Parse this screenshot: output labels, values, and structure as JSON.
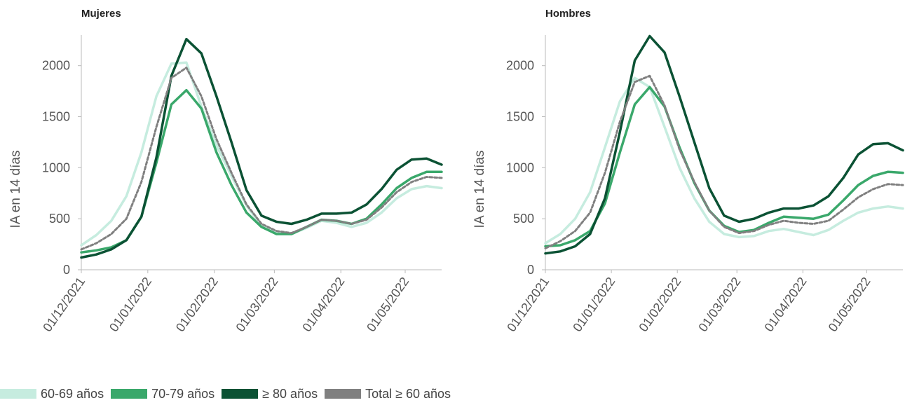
{
  "colors": {
    "s60": "#c6ecdf",
    "s70": "#3aa86b",
    "s80": "#0b5234",
    "total": "#808080"
  },
  "legend": [
    {
      "label": "60-69 años",
      "color": "#c6ecdf"
    },
    {
      "label": "70-79 años",
      "color": "#3aa86b"
    },
    {
      "label": "≥ 80 años",
      "color": "#0b5234"
    },
    {
      "label": "Total ≥ 60 años",
      "color": "#808080"
    }
  ],
  "chart_data": [
    {
      "type": "line",
      "title": "Mujeres",
      "ylabel": "IA en 14 días",
      "ylim": [
        0,
        2300
      ],
      "yticks": [
        0,
        500,
        1000,
        1500,
        2000
      ],
      "xticks": [
        "01/12/2021",
        "01/01/2022",
        "01/02/2022",
        "01/03/2022",
        "01/04/2022",
        "01/05/2022"
      ],
      "x": [
        "01/12/2021",
        "08/12/2021",
        "15/12/2021",
        "22/12/2021",
        "29/12/2021",
        "05/01/2022",
        "12/01/2022",
        "19/01/2022",
        "26/01/2022",
        "02/02/2022",
        "09/02/2022",
        "16/02/2022",
        "23/02/2022",
        "02/03/2022",
        "09/03/2022",
        "16/03/2022",
        "23/03/2022",
        "30/03/2022",
        "06/04/2022",
        "13/04/2022",
        "20/04/2022",
        "27/04/2022",
        "04/05/2022",
        "11/05/2022",
        "18/05/2022"
      ],
      "series": [
        {
          "name": "60-69 años",
          "color": "#c6ecdf",
          "dashed": false,
          "values": [
            240,
            340,
            480,
            720,
            1150,
            1700,
            2020,
            2030,
            1600,
            1220,
            920,
            630,
            430,
            360,
            350,
            410,
            480,
            460,
            420,
            460,
            560,
            700,
            790,
            820,
            800
          ]
        },
        {
          "name": "70-79 años",
          "color": "#3aa86b",
          "dashed": false,
          "values": [
            170,
            190,
            220,
            290,
            520,
            1050,
            1620,
            1760,
            1580,
            1150,
            830,
            560,
            420,
            350,
            350,
            420,
            490,
            480,
            450,
            500,
            640,
            800,
            900,
            960,
            960
          ]
        },
        {
          "name": "≥ 80 años",
          "color": "#0b5234",
          "dashed": false,
          "values": [
            120,
            150,
            200,
            290,
            520,
            1100,
            1900,
            2260,
            2120,
            1700,
            1250,
            780,
            530,
            470,
            450,
            490,
            550,
            550,
            560,
            640,
            790,
            980,
            1080,
            1090,
            1030
          ]
        },
        {
          "name": "Total ≥ 60 años",
          "color": "#808080",
          "dashed": true,
          "values": [
            200,
            260,
            350,
            500,
            860,
            1400,
            1880,
            1980,
            1700,
            1280,
            950,
            640,
            450,
            380,
            360,
            420,
            490,
            480,
            450,
            490,
            610,
            760,
            860,
            910,
            900
          ]
        }
      ]
    },
    {
      "type": "line",
      "title": "Hombres",
      "ylabel": "IA en 14 días",
      "ylim": [
        0,
        2300
      ],
      "yticks": [
        0,
        500,
        1000,
        1500,
        2000
      ],
      "xticks": [
        "01/12/2021",
        "01/01/2022",
        "01/02/2022",
        "01/03/2022",
        "01/04/2022",
        "01/05/2022"
      ],
      "x": [
        "01/12/2021",
        "08/12/2021",
        "15/12/2021",
        "22/12/2021",
        "29/12/2021",
        "05/01/2022",
        "12/01/2022",
        "19/01/2022",
        "26/01/2022",
        "02/02/2022",
        "09/02/2022",
        "16/02/2022",
        "23/02/2022",
        "02/03/2022",
        "09/03/2022",
        "16/03/2022",
        "23/03/2022",
        "30/03/2022",
        "06/04/2022",
        "13/04/2022",
        "20/04/2022",
        "27/04/2022",
        "04/05/2022",
        "11/05/2022",
        "18/05/2022"
      ],
      "series": [
        {
          "name": "60-69 años",
          "color": "#c6ecdf",
          "dashed": false,
          "values": [
            260,
            350,
            500,
            760,
            1200,
            1650,
            1880,
            1790,
            1400,
            1000,
            700,
            470,
            350,
            320,
            330,
            380,
            400,
            370,
            340,
            390,
            480,
            560,
            600,
            620,
            600
          ]
        },
        {
          "name": "70-79 años",
          "color": "#3aa86b",
          "dashed": false,
          "values": [
            230,
            240,
            290,
            380,
            650,
            1150,
            1620,
            1790,
            1600,
            1200,
            850,
            580,
            430,
            370,
            390,
            460,
            520,
            510,
            500,
            540,
            680,
            830,
            920,
            960,
            950
          ]
        },
        {
          "name": "≥ 80 años",
          "color": "#0b5234",
          "dashed": false,
          "values": [
            160,
            180,
            230,
            350,
            700,
            1350,
            2050,
            2290,
            2130,
            1700,
            1250,
            800,
            530,
            470,
            500,
            560,
            600,
            600,
            630,
            720,
            900,
            1130,
            1230,
            1240,
            1170
          ]
        },
        {
          "name": "Total ≥ 60 años",
          "color": "#808080",
          "dashed": true,
          "values": [
            210,
            280,
            380,
            560,
            950,
            1450,
            1840,
            1900,
            1610,
            1180,
            860,
            580,
            420,
            360,
            380,
            440,
            480,
            460,
            450,
            480,
            590,
            710,
            790,
            840,
            830
          ]
        }
      ]
    }
  ]
}
